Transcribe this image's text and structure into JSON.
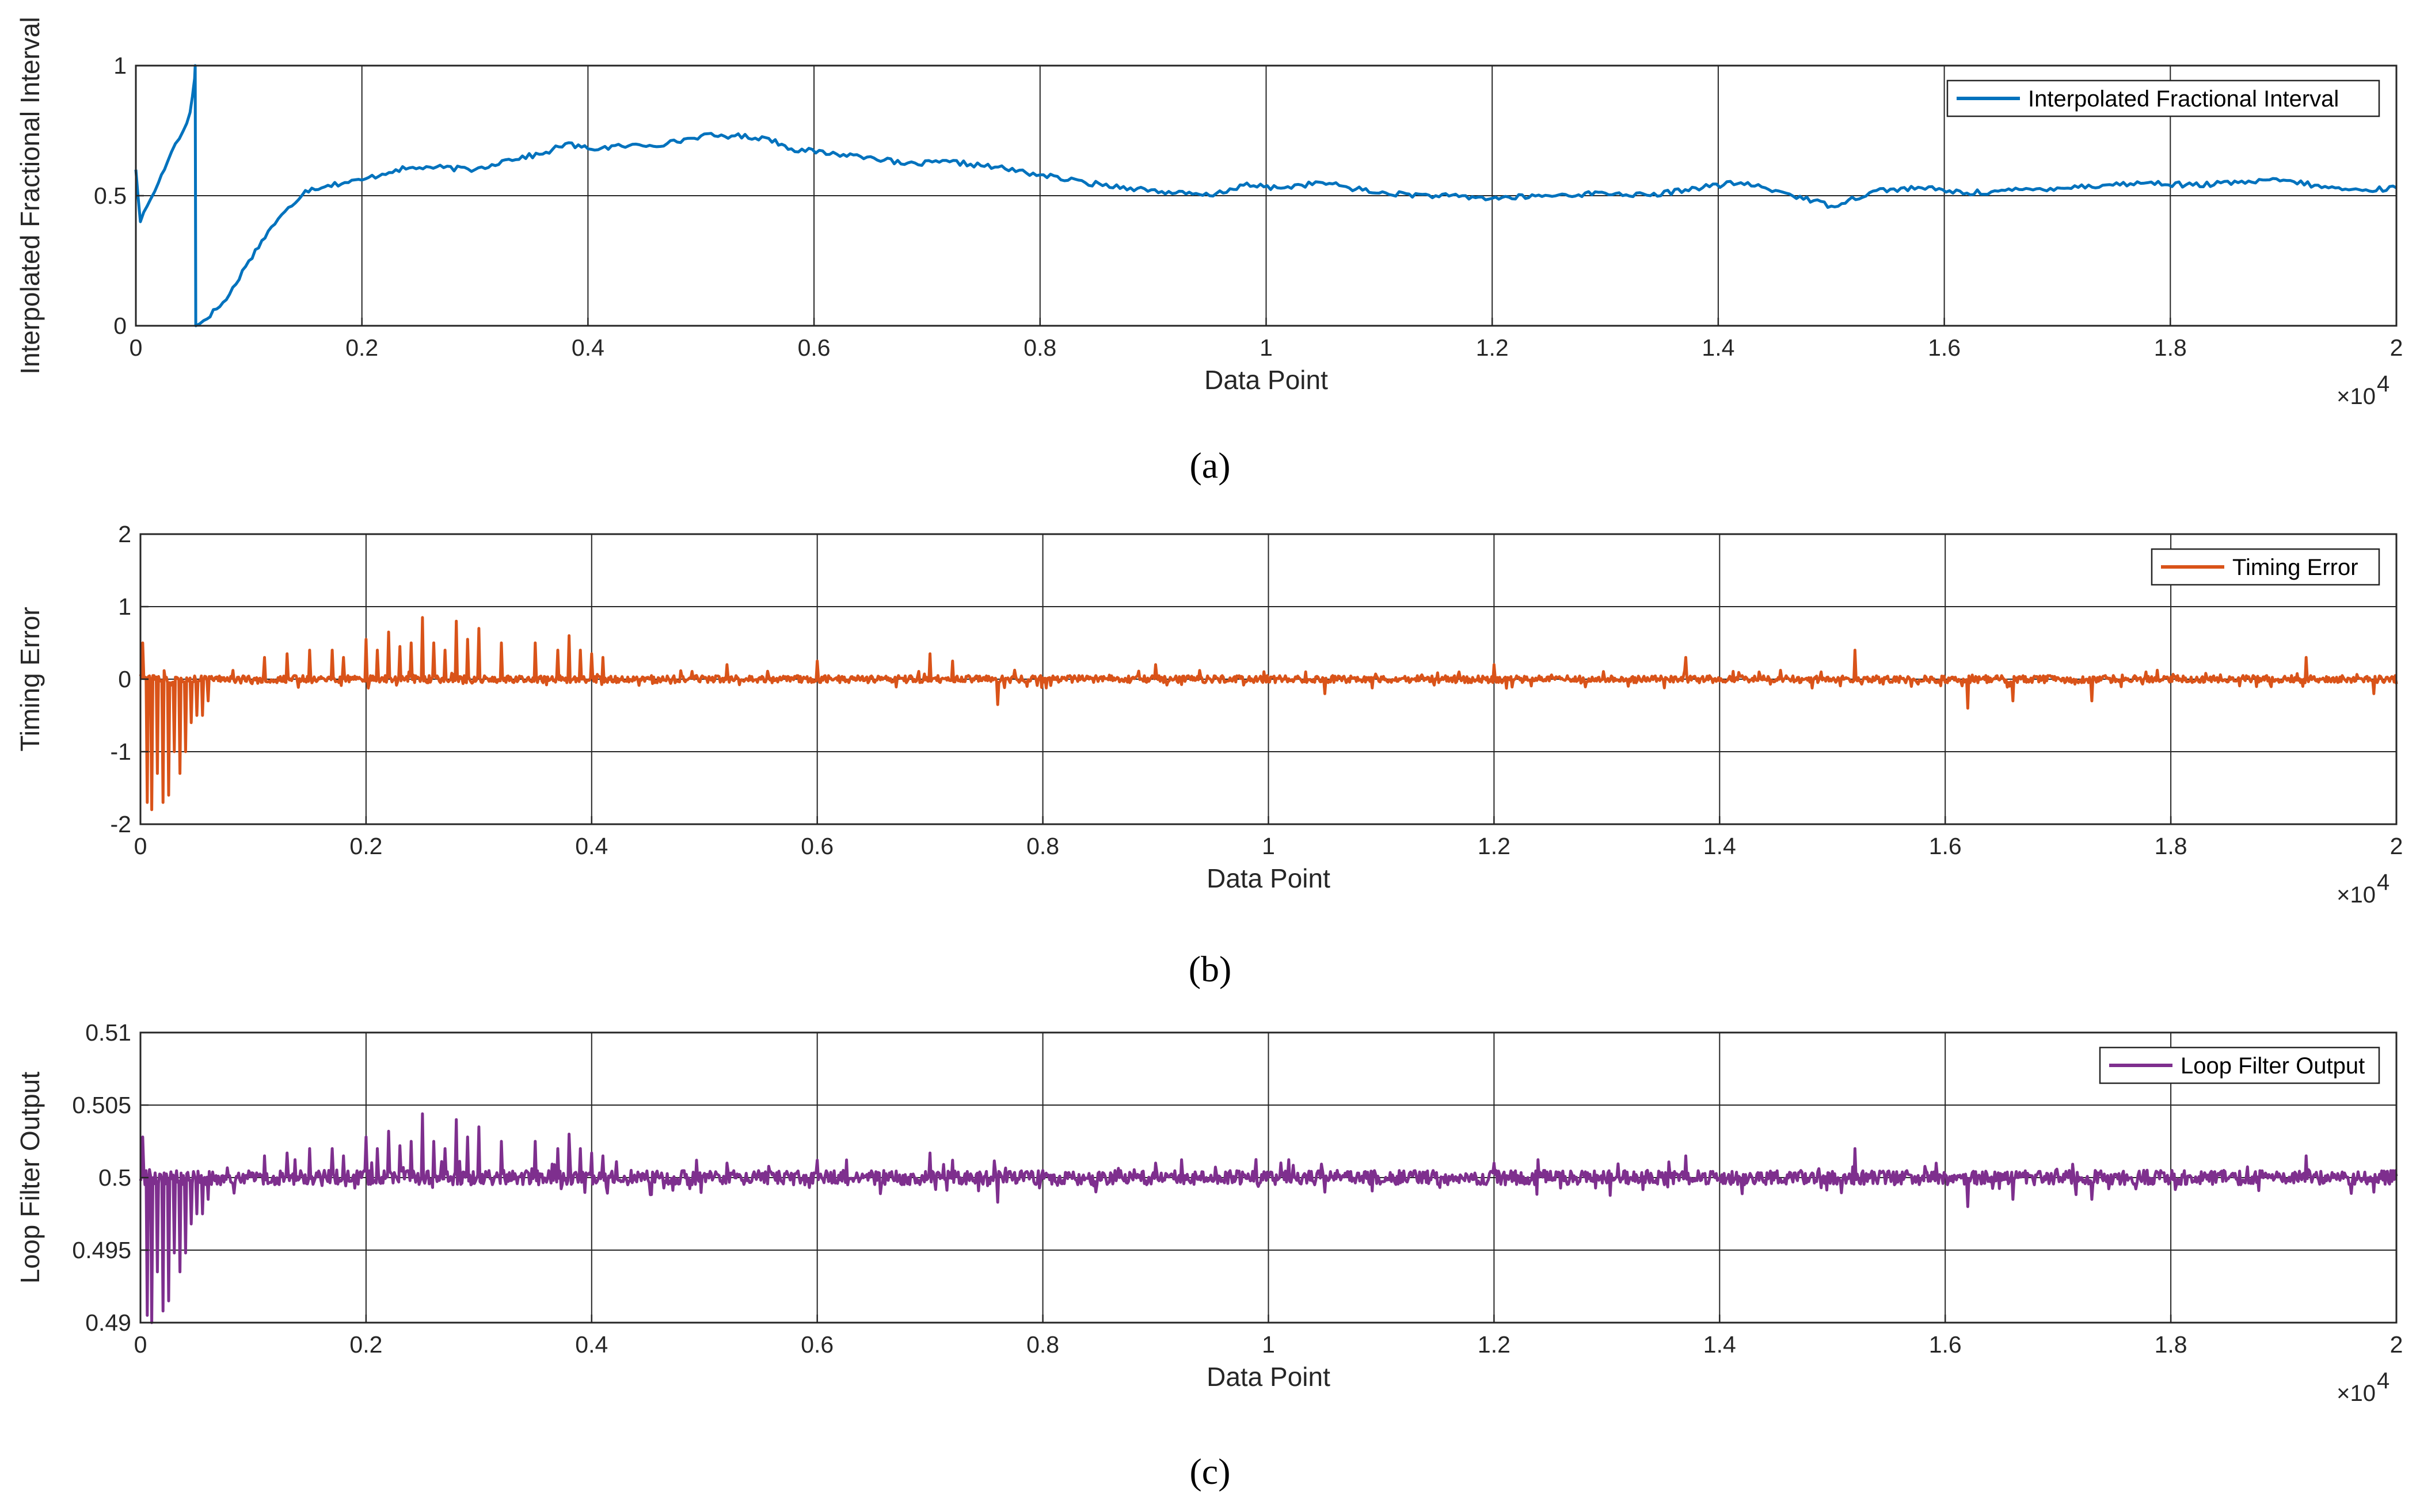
{
  "figure": {
    "captions": [
      "(a)",
      "(b)",
      "(c)"
    ]
  },
  "chart_data": [
    {
      "type": "line",
      "panel": "a",
      "ylabel": "Interpolated Fractional Interval",
      "xlabel": "Data Point",
      "xlim": [
        0,
        20000
      ],
      "ylim": [
        0,
        1
      ],
      "x_ticks": [
        0,
        2000,
        4000,
        6000,
        8000,
        10000,
        12000,
        14000,
        16000,
        18000,
        20000
      ],
      "x_tick_labels": [
        "0",
        "0.2",
        "0.4",
        "0.6",
        "0.8",
        "1",
        "1.2",
        "1.4",
        "1.6",
        "1.8",
        "2"
      ],
      "x_exponent_label": "×10",
      "x_exponent_power": "4",
      "y_ticks": [
        0,
        0.5,
        1
      ],
      "y_tick_labels": [
        "0",
        "0.5",
        "1"
      ],
      "grid": true,
      "legend": "top-right",
      "series": [
        {
          "name": "Interpolated Fractional Interval",
          "color": "#0072BD",
          "x": [
            0,
            40,
            100,
            200,
            280,
            350,
            420,
            480,
            500,
            520,
            525,
            530,
            600,
            800,
            1000,
            1200,
            1500,
            1700,
            2000,
            2300,
            2600,
            3000,
            3300,
            3600,
            3800,
            4000,
            4300,
            4700,
            5000,
            5300,
            5600,
            5800,
            6200,
            6500,
            6800,
            7200,
            7600,
            8000,
            8400,
            8800,
            9200,
            9500,
            9800,
            10100,
            10500,
            11000,
            11500,
            12000,
            12500,
            13000,
            13400,
            13800,
            14200,
            14600,
            15000,
            15400,
            15800,
            16200,
            16600,
            17000,
            17400,
            17800,
            18200,
            18600,
            19000,
            19400,
            19700,
            20000
          ],
          "y": [
            0.6,
            0.4,
            0.46,
            0.55,
            0.63,
            0.7,
            0.75,
            0.82,
            0.88,
            0.95,
            1.0,
            0.0,
            0.02,
            0.1,
            0.25,
            0.38,
            0.52,
            0.54,
            0.56,
            0.6,
            0.61,
            0.6,
            0.64,
            0.66,
            0.7,
            0.68,
            0.69,
            0.7,
            0.73,
            0.73,
            0.72,
            0.68,
            0.66,
            0.65,
            0.62,
            0.63,
            0.61,
            0.58,
            0.55,
            0.53,
            0.51,
            0.5,
            0.54,
            0.53,
            0.55,
            0.51,
            0.5,
            0.49,
            0.5,
            0.51,
            0.5,
            0.53,
            0.55,
            0.51,
            0.46,
            0.52,
            0.53,
            0.51,
            0.52,
            0.53,
            0.54,
            0.55,
            0.54,
            0.55,
            0.56,
            0.53,
            0.52,
            0.53
          ]
        }
      ]
    },
    {
      "type": "line",
      "panel": "b",
      "ylabel": "Timing Error",
      "xlabel": "Data Point",
      "xlim": [
        0,
        20000
      ],
      "ylim": [
        -2,
        2
      ],
      "x_ticks": [
        0,
        2000,
        4000,
        6000,
        8000,
        10000,
        12000,
        14000,
        16000,
        18000,
        20000
      ],
      "x_tick_labels": [
        "0",
        "0.2",
        "0.4",
        "0.6",
        "0.8",
        "1",
        "1.2",
        "1.4",
        "1.6",
        "1.8",
        "2"
      ],
      "x_exponent_label": "×10",
      "x_exponent_power": "4",
      "y_ticks": [
        -2,
        -1,
        0,
        1,
        2
      ],
      "y_tick_labels": [
        "-2",
        "-1",
        "0",
        "1",
        "2"
      ],
      "grid": true,
      "legend": "top-right",
      "series": [
        {
          "name": "Timing Error",
          "color": "#D95319",
          "baseline": 0.0,
          "noise": 0.05,
          "spikes_x": [
            20,
            60,
            100,
            150,
            200,
            250,
            300,
            350,
            400,
            450,
            500,
            550,
            600,
            1100,
            1300,
            1500,
            1700,
            1800,
            2000,
            2100,
            2200,
            2300,
            2400,
            2500,
            2600,
            2700,
            2800,
            2900,
            3000,
            3200,
            3500,
            3700,
            3800,
            3900,
            4000,
            4100,
            5200,
            6000,
            7000,
            7200,
            7600,
            9000,
            10500,
            12000,
            13700,
            15200,
            16200,
            16600,
            17300,
            19200,
            19800
          ],
          "spikes_y": [
            0.5,
            -1.7,
            -1.8,
            -1.3,
            -1.7,
            -1.6,
            -1.0,
            -1.3,
            -1.0,
            -0.6,
            -0.5,
            -0.5,
            -0.3,
            0.3,
            0.35,
            0.4,
            0.4,
            0.3,
            0.55,
            0.4,
            0.65,
            0.45,
            0.5,
            0.85,
            0.5,
            0.4,
            0.8,
            0.55,
            0.7,
            0.5,
            0.5,
            0.4,
            0.6,
            0.4,
            0.35,
            0.3,
            0.2,
            0.25,
            0.35,
            0.25,
            -0.35,
            0.2,
            -0.2,
            0.2,
            0.3,
            0.4,
            -0.4,
            -0.3,
            -0.3,
            0.3,
            -0.2
          ]
        }
      ]
    },
    {
      "type": "line",
      "panel": "c",
      "ylabel": "Loop Filter Output",
      "xlabel": "Data Point",
      "xlim": [
        0,
        20000
      ],
      "ylim": [
        0.49,
        0.51
      ],
      "x_ticks": [
        0,
        2000,
        4000,
        6000,
        8000,
        10000,
        12000,
        14000,
        16000,
        18000,
        20000
      ],
      "x_tick_labels": [
        "0",
        "0.2",
        "0.4",
        "0.6",
        "0.8",
        "1",
        "1.2",
        "1.4",
        "1.6",
        "1.8",
        "2"
      ],
      "x_exponent_label": "×10",
      "x_exponent_power": "4",
      "y_ticks": [
        0.49,
        0.495,
        0.5,
        0.505,
        0.51
      ],
      "y_tick_labels": [
        "0.49",
        "0.495",
        "0.5",
        "0.505",
        "0.51"
      ],
      "grid": true,
      "legend": "top-right",
      "series": [
        {
          "name": "Loop Filter Output",
          "color": "#7E2F8E",
          "baseline": 0.5,
          "noise": 0.0005,
          "spikes_x": [
            20,
            60,
            100,
            150,
            200,
            250,
            300,
            350,
            400,
            450,
            500,
            550,
            600,
            1100,
            1300,
            1500,
            1700,
            1800,
            2000,
            2100,
            2200,
            2300,
            2400,
            2500,
            2600,
            2700,
            2800,
            2900,
            3000,
            3200,
            3500,
            3700,
            3800,
            3900,
            4000,
            4100,
            5200,
            6000,
            7000,
            7200,
            7600,
            9000,
            10500,
            12000,
            13700,
            15200,
            16200,
            16600,
            17300,
            19200,
            19800
          ],
          "spikes_y": [
            0.5028,
            0.4905,
            0.49,
            0.4935,
            0.4908,
            0.4915,
            0.4948,
            0.4935,
            0.4948,
            0.4968,
            0.4975,
            0.4975,
            0.4985,
            0.5015,
            0.5017,
            0.502,
            0.502,
            0.5015,
            0.5028,
            0.502,
            0.5032,
            0.5022,
            0.5025,
            0.5044,
            0.5025,
            0.502,
            0.504,
            0.5028,
            0.5035,
            0.5025,
            0.5025,
            0.502,
            0.503,
            0.502,
            0.5017,
            0.5015,
            0.501,
            0.5012,
            0.5017,
            0.5012,
            0.4983,
            0.501,
            0.499,
            0.501,
            0.5015,
            0.502,
            0.498,
            0.4985,
            0.4985,
            0.5015,
            0.499
          ]
        }
      ]
    }
  ]
}
